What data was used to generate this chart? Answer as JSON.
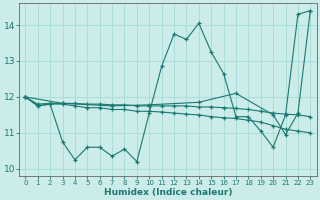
{
  "xlabel": "Humidex (Indice chaleur)",
  "background_color": "#ccecea",
  "grid_color": "#aaddda",
  "line_color": "#1a7872",
  "xlim": [
    -0.5,
    23.5
  ],
  "ylim": [
    9.8,
    14.6
  ],
  "yticks": [
    10,
    11,
    12,
    13,
    14
  ],
  "xticks": [
    0,
    1,
    2,
    3,
    4,
    5,
    6,
    7,
    8,
    9,
    10,
    11,
    12,
    13,
    14,
    15,
    16,
    17,
    18,
    19,
    20,
    21,
    22,
    23
  ],
  "series_volatile_x": [
    0,
    1,
    2,
    3,
    4,
    5,
    6,
    7,
    8,
    9,
    10,
    11,
    12,
    13,
    14,
    15,
    16,
    17,
    18,
    19,
    20,
    21,
    22,
    23
  ],
  "series_volatile_y": [
    12.0,
    11.75,
    11.8,
    10.75,
    10.25,
    10.6,
    10.6,
    10.35,
    10.55,
    10.2,
    11.55,
    12.85,
    13.75,
    13.6,
    14.05,
    13.25,
    12.65,
    11.45,
    11.45,
    11.05,
    10.6,
    11.5,
    14.3,
    14.4
  ],
  "series_flat_x": [
    0,
    1,
    2,
    3,
    4,
    5,
    6,
    7,
    8,
    9,
    10,
    11,
    12,
    13,
    14,
    15,
    16,
    17,
    18,
    19,
    20,
    21,
    22,
    23
  ],
  "series_flat_y": [
    12.0,
    11.75,
    11.8,
    11.8,
    11.75,
    11.7,
    11.7,
    11.65,
    11.65,
    11.6,
    11.6,
    11.58,
    11.55,
    11.52,
    11.5,
    11.45,
    11.42,
    11.4,
    11.35,
    11.3,
    11.2,
    11.1,
    11.05,
    11.0
  ],
  "series_horiz_x": [
    0,
    1,
    2,
    3,
    4,
    5,
    6,
    7,
    8,
    9,
    10,
    11,
    12,
    13,
    14,
    15,
    16,
    17,
    18,
    19,
    20,
    21,
    22,
    23
  ],
  "series_horiz_y": [
    12.0,
    11.8,
    11.82,
    11.82,
    11.82,
    11.8,
    11.8,
    11.78,
    11.78,
    11.75,
    11.75,
    11.75,
    11.75,
    11.75,
    11.72,
    11.72,
    11.7,
    11.68,
    11.65,
    11.6,
    11.55,
    11.52,
    11.5,
    11.45
  ],
  "series_diag_x": [
    0,
    3,
    7,
    10,
    14,
    17,
    20,
    21,
    22,
    23
  ],
  "series_diag_y": [
    12.0,
    11.82,
    11.75,
    11.78,
    11.85,
    12.1,
    11.5,
    10.95,
    11.55,
    14.4
  ]
}
